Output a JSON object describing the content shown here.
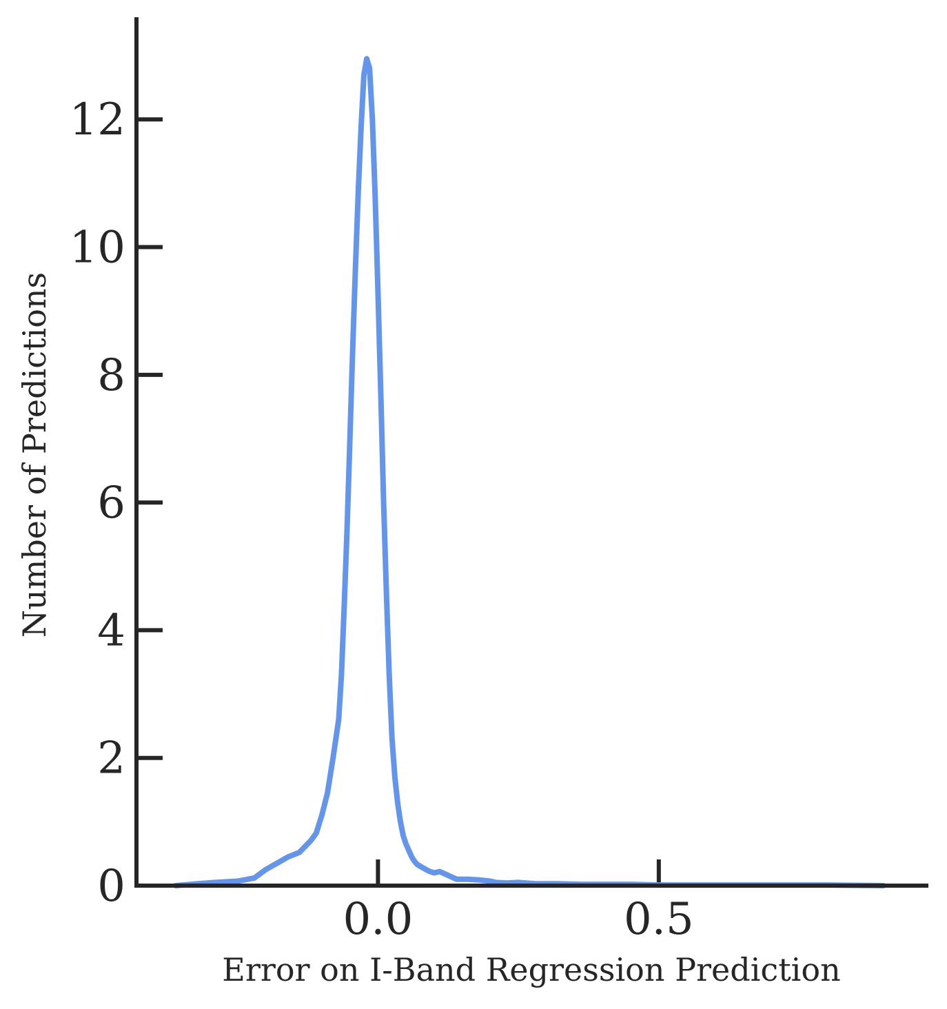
{
  "chart_data": {
    "type": "line",
    "title": "",
    "xlabel": "Error on I-Band Regression Prediction",
    "ylabel": "Number of Predictions",
    "xlim": [
      -0.43,
      0.98
    ],
    "ylim": [
      0,
      13.6
    ],
    "xticks": [
      0.0,
      0.5
    ],
    "xtick_labels": [
      "0.0",
      "0.5"
    ],
    "yticks": [
      0,
      2,
      4,
      6,
      8,
      10,
      12
    ],
    "ytick_labels": [
      "0",
      "2",
      "4",
      "6",
      "8",
      "10",
      "12"
    ],
    "grid": false,
    "series": [
      {
        "color": "#6495ED",
        "x": [
          -0.36,
          -0.32,
          -0.29,
          -0.25,
          -0.22,
          -0.2,
          -0.18,
          -0.16,
          -0.14,
          -0.12,
          -0.11,
          -0.1,
          -0.09,
          -0.08,
          -0.07,
          -0.065,
          -0.06,
          -0.055,
          -0.05,
          -0.045,
          -0.04,
          -0.035,
          -0.03,
          -0.025,
          -0.02,
          -0.015,
          -0.01,
          -0.005,
          0.0,
          0.005,
          0.01,
          0.015,
          0.02,
          0.025,
          0.03,
          0.035,
          0.04,
          0.045,
          0.05,
          0.055,
          0.06,
          0.065,
          0.07,
          0.08,
          0.09,
          0.1,
          0.11,
          0.12,
          0.14,
          0.16,
          0.18,
          0.2,
          0.21,
          0.23,
          0.25,
          0.28,
          0.32,
          0.36,
          0.4,
          0.45,
          0.5,
          0.6,
          0.7,
          0.8,
          0.9
        ],
        "y": [
          0.0,
          0.03,
          0.05,
          0.07,
          0.12,
          0.25,
          0.35,
          0.45,
          0.52,
          0.7,
          0.82,
          1.1,
          1.45,
          2.0,
          2.6,
          3.3,
          4.4,
          5.6,
          7.0,
          8.4,
          9.7,
          10.9,
          11.9,
          12.7,
          12.95,
          12.8,
          12.0,
          10.8,
          9.3,
          7.7,
          6.0,
          4.6,
          3.3,
          2.3,
          1.7,
          1.3,
          1.0,
          0.78,
          0.65,
          0.55,
          0.45,
          0.38,
          0.33,
          0.28,
          0.23,
          0.2,
          0.22,
          0.18,
          0.1,
          0.1,
          0.09,
          0.07,
          0.05,
          0.04,
          0.05,
          0.03,
          0.03,
          0.02,
          0.02,
          0.02,
          0.01,
          0.01,
          0.01,
          0.01,
          0.0
        ]
      }
    ]
  }
}
